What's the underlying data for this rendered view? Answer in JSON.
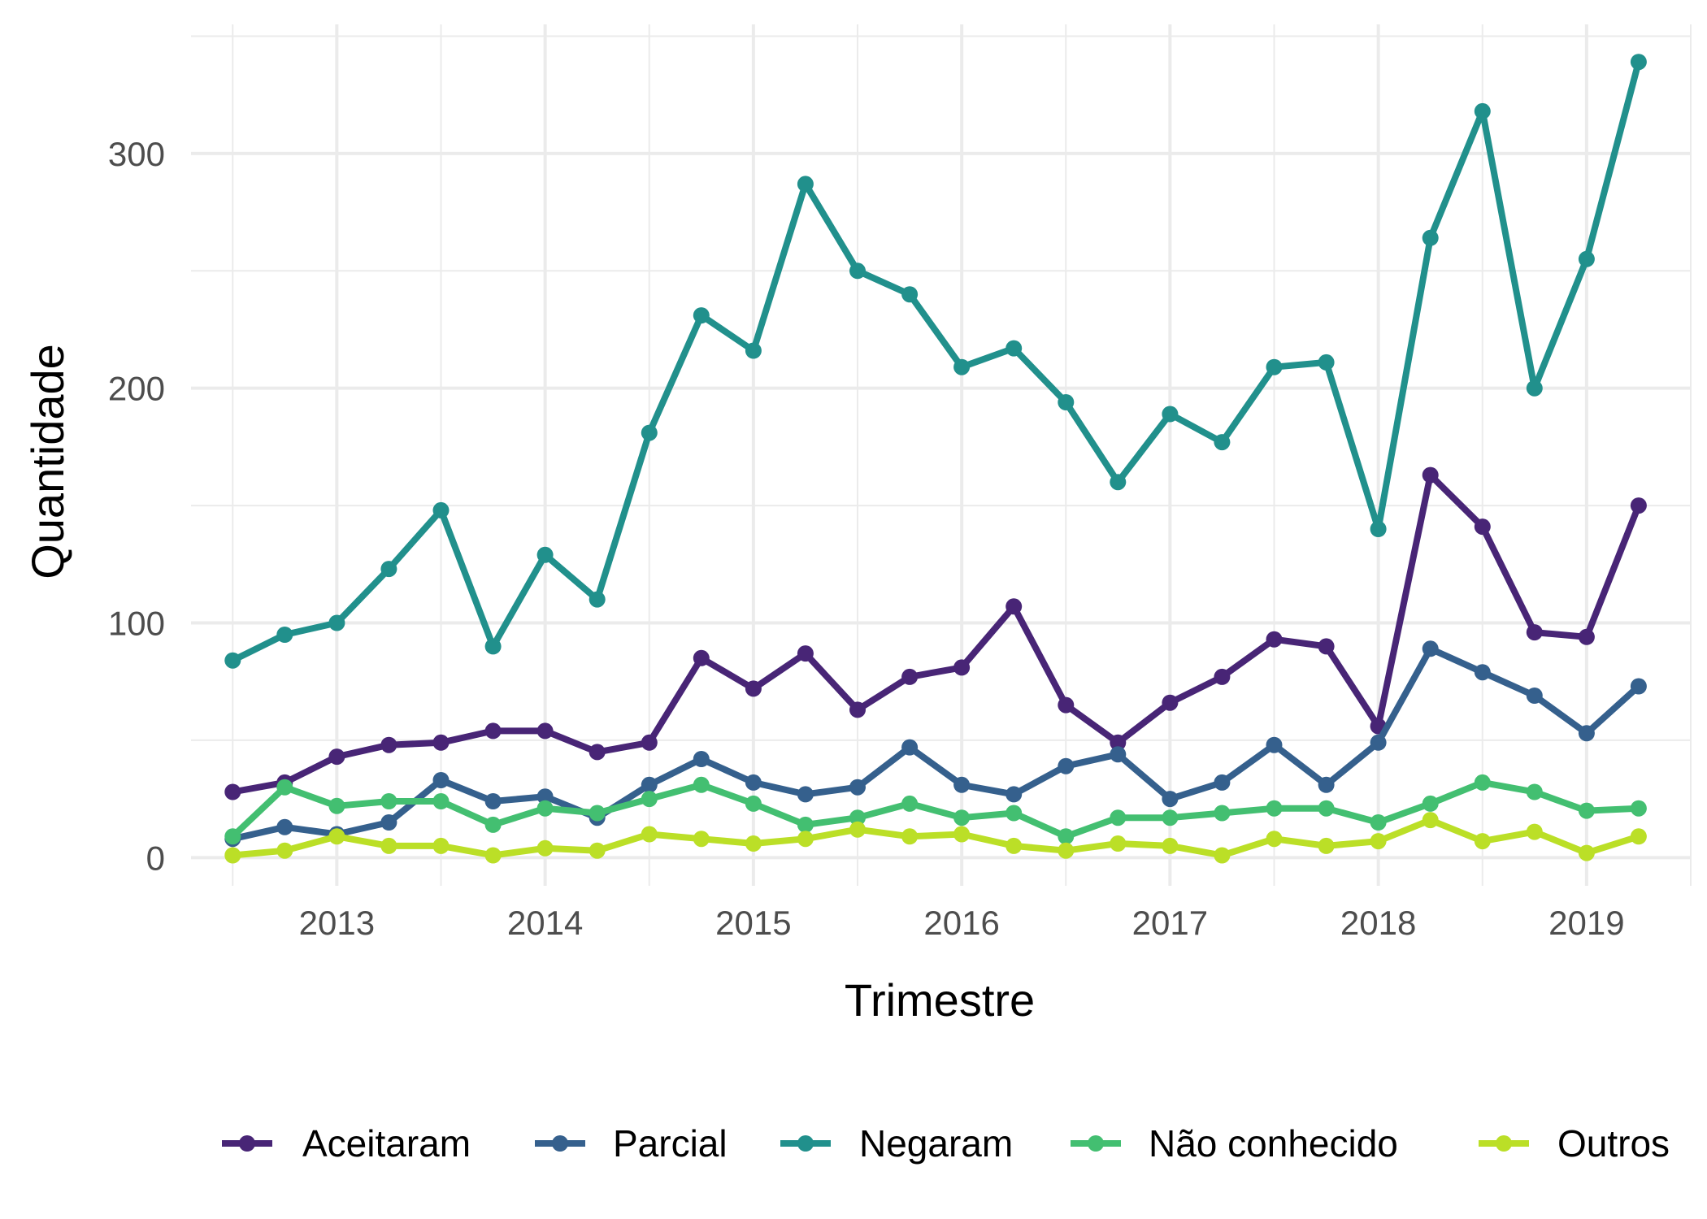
{
  "chart_data": {
    "type": "line",
    "xlabel": "Trimestre",
    "ylabel": "Quantidade",
    "x_ticks": [
      2013,
      2014,
      2015,
      2016,
      2017,
      2018,
      2019
    ],
    "x_tick_labels": [
      "2013",
      "2014",
      "2015",
      "2016",
      "2017",
      "2018",
      "2019"
    ],
    "y_ticks": [
      0,
      100,
      200,
      300
    ],
    "y_tick_labels": [
      "0",
      "100",
      "200",
      "300"
    ],
    "xlim": [
      2012.3,
      2019.5
    ],
    "ylim": [
      -12,
      355
    ],
    "grid": true,
    "legend_position": "bottom",
    "x": [
      2012.5,
      2012.75,
      2013.0,
      2013.25,
      2013.5,
      2013.75,
      2014.0,
      2014.25,
      2014.5,
      2014.75,
      2015.0,
      2015.25,
      2015.5,
      2015.75,
      2016.0,
      2016.25,
      2016.5,
      2016.75,
      2017.0,
      2017.25,
      2017.5,
      2017.75,
      2018.0,
      2018.25,
      2018.5,
      2018.75,
      2019.0,
      2019.25
    ],
    "series": [
      {
        "name": "Aceitaram",
        "color": "#482576",
        "values": [
          28,
          32,
          43,
          48,
          49,
          54,
          54,
          45,
          49,
          85,
          72,
          87,
          63,
          77,
          81,
          107,
          65,
          49,
          66,
          77,
          93,
          90,
          56,
          163,
          141,
          96,
          94,
          150
        ]
      },
      {
        "name": "Parcial",
        "color": "#35608D",
        "values": [
          8,
          13,
          10,
          15,
          33,
          24,
          26,
          17,
          31,
          42,
          32,
          27,
          30,
          47,
          31,
          27,
          39,
          44,
          25,
          32,
          48,
          31,
          49,
          89,
          79,
          69,
          53,
          73
        ]
      },
      {
        "name": "Negaram",
        "color": "#21908C",
        "values": [
          84,
          95,
          100,
          123,
          148,
          90,
          129,
          110,
          181,
          231,
          216,
          287,
          250,
          240,
          209,
          217,
          194,
          160,
          189,
          177,
          209,
          211,
          140,
          264,
          318,
          200,
          255,
          339
        ]
      },
      {
        "name": "Não conhecido",
        "color": "#43BF71",
        "values": [
          9,
          30,
          22,
          24,
          24,
          14,
          21,
          19,
          25,
          31,
          23,
          14,
          17,
          23,
          17,
          19,
          9,
          17,
          17,
          19,
          21,
          21,
          15,
          23,
          32,
          28,
          20,
          21
        ]
      },
      {
        "name": "Outros",
        "color": "#BBDF27",
        "values": [
          1,
          3,
          9,
          5,
          5,
          1,
          4,
          3,
          10,
          8,
          6,
          8,
          12,
          9,
          10,
          5,
          3,
          6,
          5,
          1,
          8,
          5,
          7,
          16,
          7,
          11,
          2,
          9
        ]
      }
    ]
  }
}
